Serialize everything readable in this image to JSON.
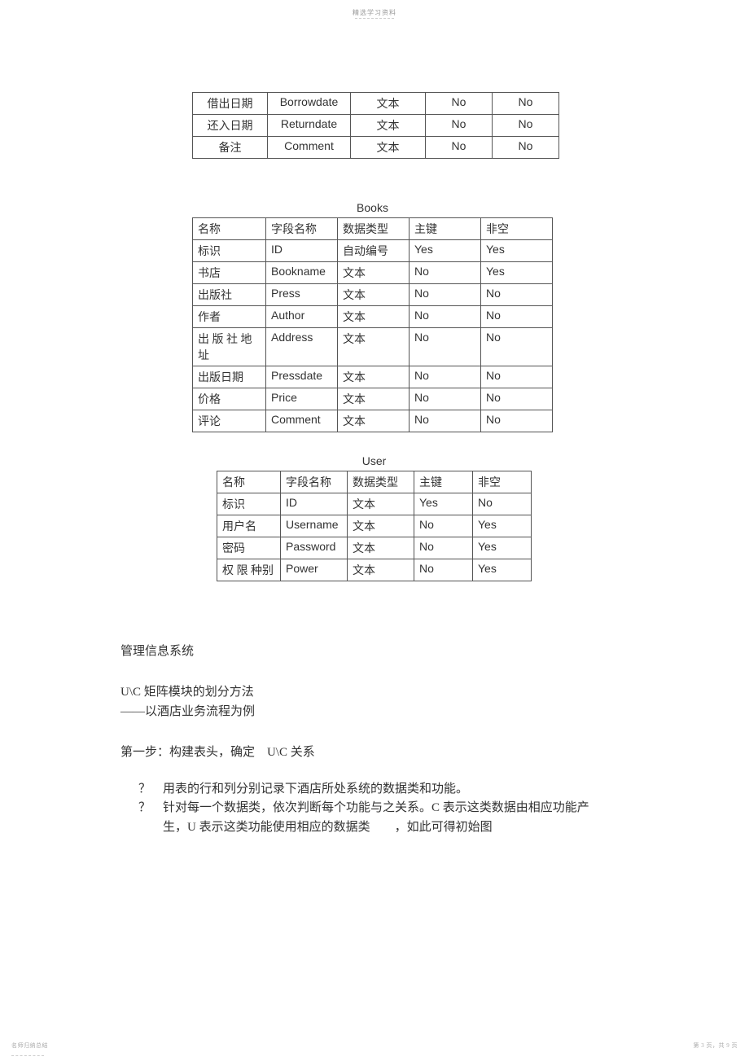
{
  "header": {
    "text": "精选学习资料"
  },
  "table1": {
    "rows": [
      {
        "c1": "借出日期",
        "c2": "Borrowdate",
        "c3": "文本",
        "c4": "No",
        "c5": "No"
      },
      {
        "c1": "还入日期",
        "c2": "Returndate",
        "c3": "文本",
        "c4": "No",
        "c5": "No"
      },
      {
        "c1": "备注",
        "c2": "Comment",
        "c3": "文本",
        "c4": "No",
        "c5": "No"
      }
    ]
  },
  "table2": {
    "title": "Books",
    "rows": [
      {
        "c1": "名称",
        "c2": "字段名称",
        "c3": "数据类型",
        "c4": "主键",
        "c5": "非空",
        "latinCols": false
      },
      {
        "c1": "标识",
        "c2": "ID",
        "c3": "自动编号",
        "c4": "Yes",
        "c5": "Yes",
        "latinCols": true
      },
      {
        "c1": "书店",
        "c2": "Bookname",
        "c3": "文本",
        "c4": "No",
        "c5": "Yes",
        "latinCols": true
      },
      {
        "c1": "出版社",
        "c2": "Press",
        "c3": "文本",
        "c4": "No",
        "c5": "No",
        "latinCols": true
      },
      {
        "c1": "作者",
        "c2": "Author",
        "c3": "文本",
        "c4": "No",
        "c5": "No",
        "latinCols": true
      },
      {
        "c1": "出 版 社 地址",
        "c2": "Address",
        "c3": "文本",
        "c4": "No",
        "c5": "No",
        "latinCols": true
      },
      {
        "c1": "出版日期",
        "c2": "Pressdate",
        "c3": "文本",
        "c4": "No",
        "c5": "No",
        "latinCols": true
      },
      {
        "c1": "价格",
        "c2": "Price",
        "c3": "文本",
        "c4": "No",
        "c5": "No",
        "latinCols": true
      },
      {
        "c1": "评论",
        "c2": "Comment",
        "c3": "文本",
        "c4": "No",
        "c5": "No",
        "latinCols": true
      }
    ]
  },
  "table3": {
    "title": "User",
    "rows": [
      {
        "c1": "名称",
        "c2": "字段名称",
        "c3": "数据类型",
        "c4": "主键",
        "c5": "非空",
        "latinCols": false
      },
      {
        "c1": "标识",
        "c2": "ID",
        "c3": "文本",
        "c4": "Yes",
        "c5": "No",
        "latinCols": true
      },
      {
        "c1": "用户名",
        "c2": "Username",
        "c3": "文本",
        "c4": "No",
        "c5": "Yes",
        "latinCols": true
      },
      {
        "c1": "密码",
        "c2": "Password",
        "c3": "文本",
        "c4": "No",
        "c5": "Yes",
        "latinCols": true
      },
      {
        "c1": "权 限 种别",
        "c2": "Power",
        "c3": "文本",
        "c4": "No",
        "c5": "Yes",
        "latinCols": true
      }
    ]
  },
  "body": {
    "line1": "管理信息系统",
    "line2": "U\\C 矩阵模块的划分方法",
    "line3": "——以酒店业务流程为例",
    "line4": "第一步：构建表头，确定　U\\C 关系"
  },
  "bullets": {
    "mark": "？",
    "items": [
      "用表的行和列分别记录下酒店所处系统的数据类和功能。",
      "针对每一个数据类，依次判断每个功能与之关系。C 表示这类数据由相应功能产生，U 表示这类功能使用相应的数据类　　，如此可得初始图"
    ]
  },
  "footer": {
    "left": "名师归纳总结",
    "right": "第 3 页，共 9 页"
  },
  "colors": {
    "background": "#ffffff",
    "text": "#333333",
    "border": "#555555",
    "headerText": "#999999"
  }
}
